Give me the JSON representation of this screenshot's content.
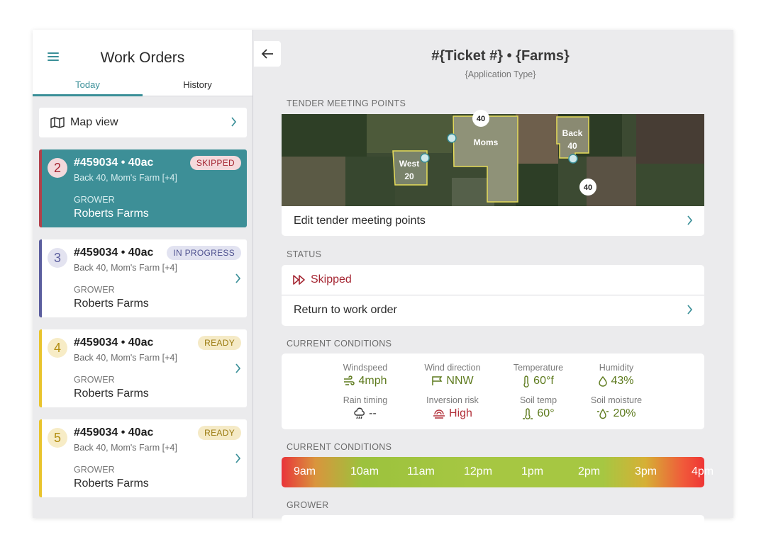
{
  "left": {
    "title": "Work Orders",
    "tabs": [
      {
        "label": "Today"
      },
      {
        "label": "History"
      }
    ],
    "map_view_label": "Map view",
    "cards": [
      {
        "num": "2",
        "title": "#459034 • 40ac",
        "sub": "Back 40, Mom's Farm [+4]",
        "grower_label": "GROWER",
        "grower": "Roberts Farms",
        "badge": "SKIPPED",
        "selected": true
      },
      {
        "num": "3",
        "title": "#459034 • 40ac",
        "sub": "Back 40, Mom's Farm [+4]",
        "grower_label": "GROWER",
        "grower": "Roberts Farms",
        "badge": "IN PROGRESS",
        "selected": false
      },
      {
        "num": "4",
        "title": "#459034 • 40ac",
        "sub": "Back 40, Mom's Farm [+4]",
        "grower_label": "GROWER",
        "grower": "Roberts Farms",
        "badge": "READY",
        "selected": false
      },
      {
        "num": "5",
        "title": "#459034 • 40ac",
        "sub": "Back 40, Mom's Farm [+4]",
        "grower_label": "GROWER",
        "grower": "Roberts Farms",
        "badge": "READY",
        "selected": false
      }
    ]
  },
  "detail": {
    "title": "#{Ticket #} • {Farms}",
    "subtitle": "{Application Type}",
    "sections": {
      "tender": "TENDER MEETING POINTS",
      "status": "STATUS",
      "conditions": "CURRENT CONDITIONS",
      "timeline": "CURRENT CONDITIONS",
      "grower": "GROWER"
    },
    "map": {
      "fields": [
        {
          "label": "Moms"
        },
        {
          "label": "West",
          "acres": "20"
        },
        {
          "label": "Back",
          "acres": "40"
        }
      ],
      "markers": [
        "40",
        "40"
      ]
    },
    "edit_tender_label": "Edit tender meeting points",
    "status_value": "Skipped",
    "return_label": "Return to work order",
    "conditions": [
      {
        "label": "Windspeed",
        "value": "4mph",
        "icon": "wind-icon"
      },
      {
        "label": "Wind direction",
        "value": "NNW",
        "icon": "windsock-icon"
      },
      {
        "label": "Temperature",
        "value": "60°f",
        "icon": "thermometer-icon"
      },
      {
        "label": "Humidity",
        "value": "43%",
        "icon": "droplet-icon"
      },
      {
        "label": "Rain timing",
        "value": "--",
        "icon": "rain-cloud-icon"
      },
      {
        "label": "Inversion risk",
        "value": "High",
        "icon": "inversion-icon"
      },
      {
        "label": "Soil temp",
        "value": "60°",
        "icon": "soil-temp-icon"
      },
      {
        "label": "Soil moisture",
        "value": "20%",
        "icon": "soil-moisture-icon"
      }
    ],
    "timeline_hours": [
      "9am",
      "10am",
      "11am",
      "12pm",
      "1pm",
      "2pm",
      "3pm",
      "4pm"
    ]
  },
  "colors": {
    "teal": "#3d8f97",
    "skipped_red": "#a52632",
    "in_progress": "#5b5e9e",
    "ready": "#e9c42d",
    "condition_green": "#5d7a1d"
  }
}
